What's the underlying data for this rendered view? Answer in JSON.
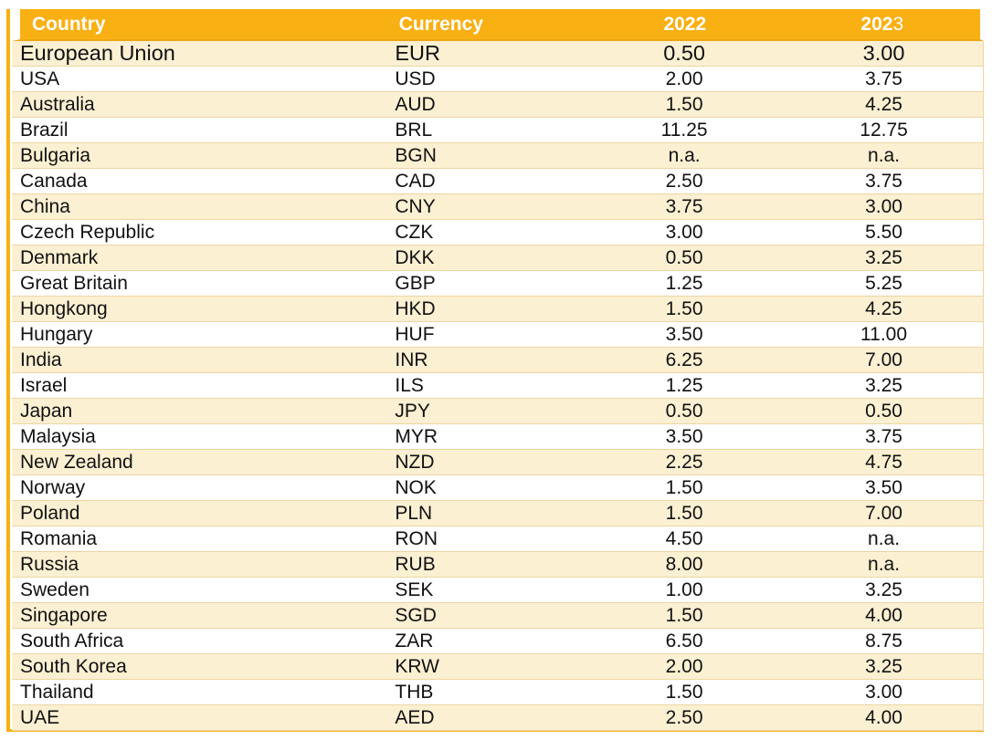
{
  "colors": {
    "accent_orange": "#F9B013",
    "header_text": "#FFFFFF",
    "row_alt_bg": "#FCF0D3",
    "row_bg": "#FFFFFF",
    "separator": "#EDD5A1",
    "body_text": "#111111"
  },
  "table": {
    "columns": [
      {
        "key": "country",
        "label": "Country"
      },
      {
        "key": "currency",
        "label": "Currency"
      },
      {
        "key": "y2022",
        "label": "2022"
      },
      {
        "key": "y2023",
        "label": "2023",
        "label_bold": "202",
        "label_regular": "3"
      }
    ],
    "rows": [
      {
        "country": "European Union",
        "currency": "EUR",
        "y2022": "0.50",
        "y2023": "3.00",
        "featured": true
      },
      {
        "country": "USA",
        "currency": "USD",
        "y2022": "2.00",
        "y2023": "3.75"
      },
      {
        "country": "Australia",
        "currency": "AUD",
        "y2022": "1.50",
        "y2023": "4.25"
      },
      {
        "country": "Brazil",
        "currency": "BRL",
        "y2022": "11.25",
        "y2023": "12.75"
      },
      {
        "country": "Bulgaria",
        "currency": "BGN",
        "y2022": "n.a.",
        "y2023": "n.a."
      },
      {
        "country": "Canada",
        "currency": "CAD",
        "y2022": "2.50",
        "y2023": "3.75"
      },
      {
        "country": "China",
        "currency": "CNY",
        "y2022": "3.75",
        "y2023": "3.00"
      },
      {
        "country": "Czech Republic",
        "currency": "CZK",
        "y2022": "3.00",
        "y2023": "5.50"
      },
      {
        "country": "Denmark",
        "currency": "DKK",
        "y2022": "0.50",
        "y2023": "3.25"
      },
      {
        "country": "Great Britain",
        "currency": "GBP",
        "y2022": "1.25",
        "y2023": "5.25"
      },
      {
        "country": "Hongkong",
        "currency": "HKD",
        "y2022": "1.50",
        "y2023": "4.25"
      },
      {
        "country": "Hungary",
        "currency": "HUF",
        "y2022": "3.50",
        "y2023": "11.00"
      },
      {
        "country": "India",
        "currency": "INR",
        "y2022": "6.25",
        "y2023": "7.00"
      },
      {
        "country": "Israel",
        "currency": "ILS",
        "y2022": "1.25",
        "y2023": "3.25"
      },
      {
        "country": "Japan",
        "currency": "JPY",
        "y2022": "0.50",
        "y2023": "0.50"
      },
      {
        "country": "Malaysia",
        "currency": "MYR",
        "y2022": "3.50",
        "y2023": "3.75"
      },
      {
        "country": "New Zealand",
        "currency": "NZD",
        "y2022": "2.25",
        "y2023": "4.75"
      },
      {
        "country": "Norway",
        "currency": "NOK",
        "y2022": "1.50",
        "y2023": "3.50"
      },
      {
        "country": "Poland",
        "currency": "PLN",
        "y2022": "1.50",
        "y2023": "7.00"
      },
      {
        "country": "Romania",
        "currency": "RON",
        "y2022": "4.50",
        "y2023": "n.a."
      },
      {
        "country": "Russia",
        "currency": "RUB",
        "y2022": "8.00",
        "y2023": "n.a."
      },
      {
        "country": "Sweden",
        "currency": "SEK",
        "y2022": "1.00",
        "y2023": "3.25"
      },
      {
        "country": "Singapore",
        "currency": "SGD",
        "y2022": "1.50",
        "y2023": "4.00"
      },
      {
        "country": "South Africa",
        "currency": "ZAR",
        "y2022": "6.50",
        "y2023": "8.75"
      },
      {
        "country": "South Korea",
        "currency": "KRW",
        "y2022": "2.00",
        "y2023": "3.25"
      },
      {
        "country": "Thailand",
        "currency": "THB",
        "y2022": "1.50",
        "y2023": "3.00"
      },
      {
        "country": "UAE",
        "currency": "AED",
        "y2022": "2.50",
        "y2023": "4.00"
      }
    ]
  }
}
